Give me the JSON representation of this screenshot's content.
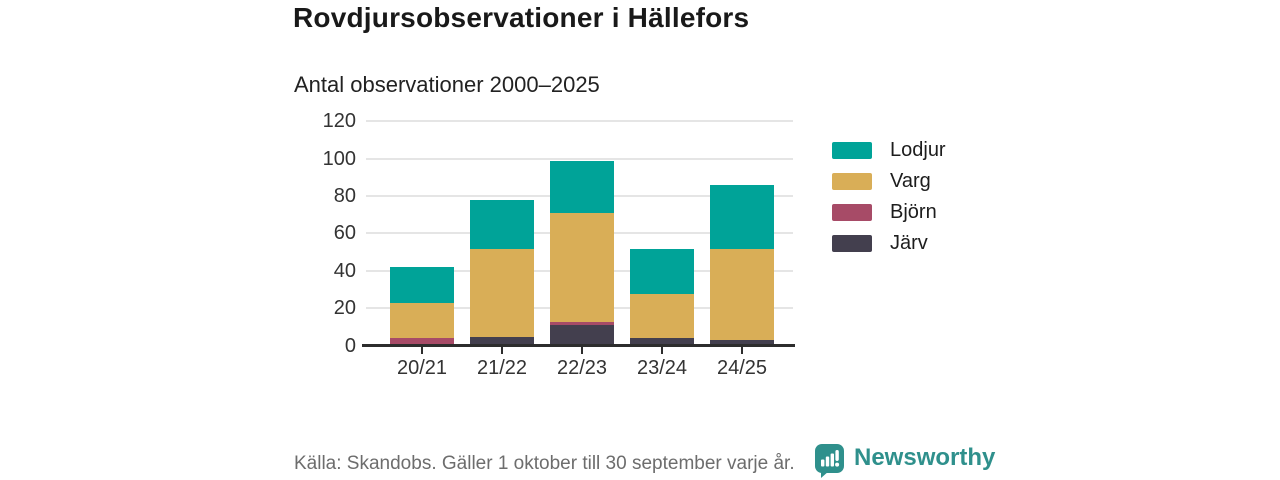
{
  "header": {
    "title": "Rovdjursobservationer i Hällefors",
    "subtitle": "Antal observationer 2000–2025"
  },
  "chart_data": {
    "type": "bar",
    "stacked": true,
    "title": "Antal observationer 2000–2025",
    "categories": [
      "20/21",
      "21/22",
      "22/23",
      "23/24",
      "24/25"
    ],
    "series": [
      {
        "name": "Järv",
        "color": "#433f4e",
        "values": [
          0,
          4,
          10,
          3,
          2
        ]
      },
      {
        "name": "Björn",
        "color": "#a74b67",
        "values": [
          3,
          0,
          2,
          0,
          0
        ]
      },
      {
        "name": "Varg",
        "color": "#d9ae57",
        "values": [
          19,
          47,
          58,
          24,
          49
        ]
      },
      {
        "name": "Lodjur",
        "color": "#00a398",
        "values": [
          19,
          26,
          28,
          24,
          34
        ]
      }
    ],
    "totals": [
      41,
      77,
      98,
      51,
      85
    ],
    "legend_order": [
      "Lodjur",
      "Varg",
      "Björn",
      "Järv"
    ],
    "legend_position": "right",
    "ylim": [
      0,
      120
    ],
    "yticks": [
      0,
      20,
      40,
      60,
      80,
      100,
      120
    ],
    "grid": true,
    "axis_color": "#2d2d2d",
    "gridline_color": "#e5e5e5"
  },
  "footer": {
    "source": "Källa: Skandobs. Gäller 1 oktober till 30 september varje år.",
    "brand": "Newsworthy",
    "brand_color": "#2f908c"
  }
}
